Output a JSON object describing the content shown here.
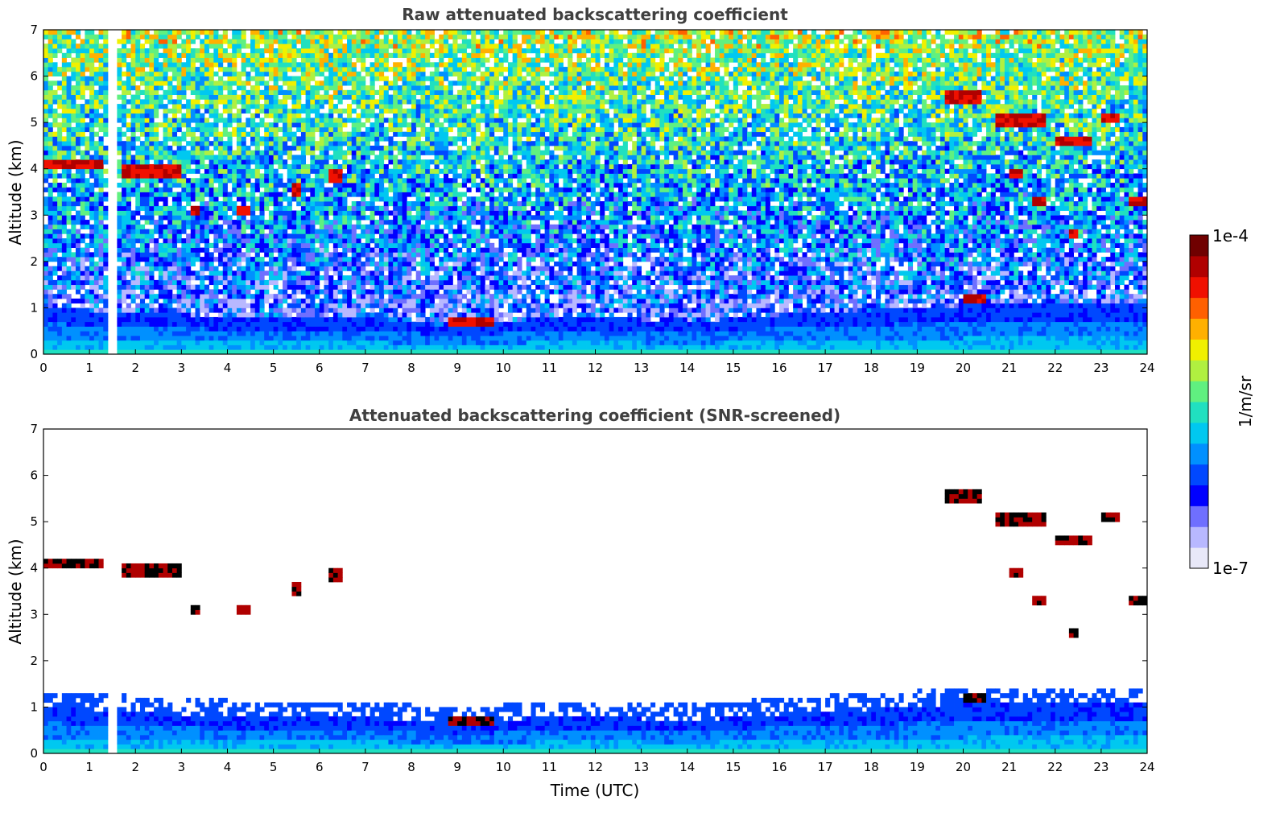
{
  "chart_data": [
    {
      "type": "heatmap",
      "title": "Raw attenuated backscattering coefficient",
      "ylabel": "Altitude (km)",
      "xlabel": "",
      "xlim": [
        0,
        24
      ],
      "ylim": [
        0,
        7
      ],
      "x_ticks": [
        "0",
        "1",
        "2",
        "3",
        "4",
        "5",
        "6",
        "7",
        "8",
        "9",
        "10",
        "11",
        "12",
        "13",
        "14",
        "15",
        "16",
        "17",
        "18",
        "19",
        "20",
        "21",
        "22",
        "23",
        "24"
      ],
      "y_ticks": [
        "0",
        "1",
        "2",
        "3",
        "4",
        "5",
        "6",
        "7"
      ],
      "data_gap_hours": [
        1.45,
        1.58
      ],
      "features": {
        "boundary_layer_top_km": [
          [
            0,
            1.0
          ],
          [
            2,
            0.9
          ],
          [
            4,
            0.8
          ],
          [
            6,
            0.75
          ],
          [
            7,
            0.8
          ],
          [
            9,
            0.6
          ],
          [
            11,
            0.8
          ],
          [
            13,
            0.75
          ],
          [
            14,
            0.7
          ],
          [
            16,
            0.85
          ],
          [
            18,
            0.95
          ],
          [
            20,
            1.05
          ],
          [
            22,
            1.1
          ],
          [
            24,
            1.1
          ]
        ],
        "cloud_layers": [
          {
            "t0": 0.0,
            "t1": 1.3,
            "alt_km": 4.1
          },
          {
            "t0": 1.7,
            "t1": 3.05,
            "alt_km": 3.95
          },
          {
            "t0": 3.2,
            "t1": 3.35,
            "alt_km": 3.1
          },
          {
            "t0": 4.2,
            "t1": 4.45,
            "alt_km": 3.1
          },
          {
            "t0": 5.4,
            "t1": 5.6,
            "alt_km": 3.55
          },
          {
            "t0": 6.2,
            "t1": 6.5,
            "alt_km": 3.85
          },
          {
            "t0": 8.8,
            "t1": 9.8,
            "alt_km": 0.7
          },
          {
            "t0": 19.6,
            "t1": 20.4,
            "alt_km": 5.55
          },
          {
            "t0": 20.7,
            "t1": 21.8,
            "alt_km": 5.05
          },
          {
            "t0": 21.0,
            "t1": 21.3,
            "alt_km": 3.9
          },
          {
            "t0": 22.0,
            "t1": 22.8,
            "alt_km": 4.6
          },
          {
            "t0": 21.5,
            "t1": 21.8,
            "alt_km": 3.3
          },
          {
            "t0": 22.3,
            "t1": 22.5,
            "alt_km": 2.6
          },
          {
            "t0": 23.0,
            "t1": 23.4,
            "alt_km": 5.1
          },
          {
            "t0": 23.6,
            "t1": 24.0,
            "alt_km": 3.3
          },
          {
            "t0": 20.0,
            "t1": 20.5,
            "alt_km": 1.2
          }
        ]
      }
    },
    {
      "type": "heatmap",
      "title": "Attenuated backscattering coefficient (SNR-screened)",
      "ylabel": "Altitude (km)",
      "xlabel": "Time (UTC)",
      "xlim": [
        0,
        24
      ],
      "ylim": [
        0,
        7
      ],
      "x_ticks": [
        "0",
        "1",
        "2",
        "3",
        "4",
        "5",
        "6",
        "7",
        "8",
        "9",
        "10",
        "11",
        "12",
        "13",
        "14",
        "15",
        "16",
        "17",
        "18",
        "19",
        "20",
        "21",
        "22",
        "23",
        "24"
      ],
      "y_ticks": [
        "0",
        "1",
        "2",
        "3",
        "4",
        "5",
        "6",
        "7"
      ]
    }
  ],
  "colorbar": {
    "label": "1/m/sr",
    "max_label": "1e-4",
    "min_label": "1e-7",
    "colormap": [
      "#e8e8f8",
      "#b8b8ff",
      "#6f6fff",
      "#0000ff",
      "#0048ff",
      "#0090ff",
      "#00c8f0",
      "#20e0c0",
      "#60f080",
      "#b0f040",
      "#f0f000",
      "#ffb000",
      "#ff6000",
      "#f01000",
      "#b00000",
      "#700000"
    ]
  }
}
